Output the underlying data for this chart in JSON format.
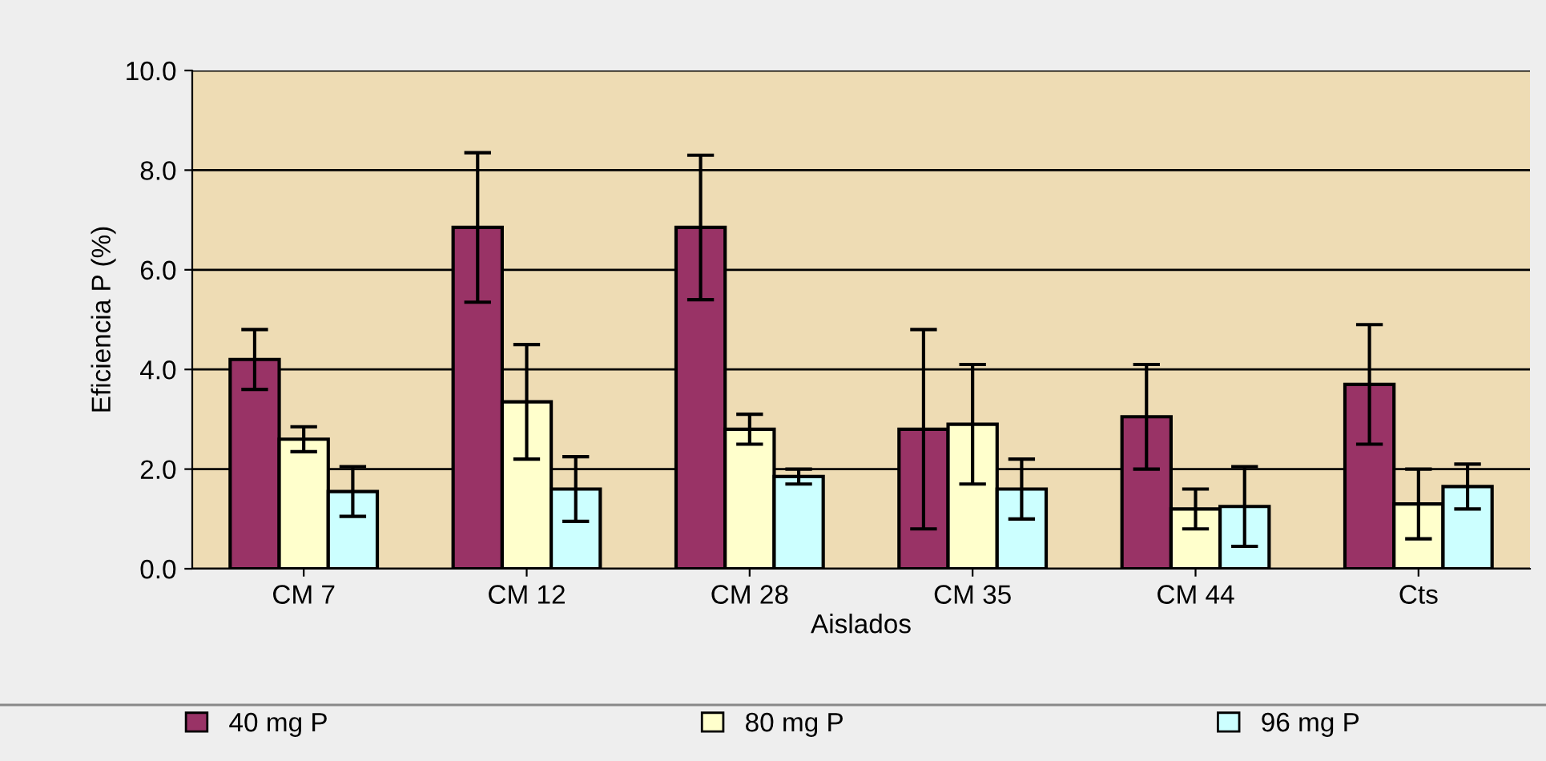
{
  "chart_data": {
    "type": "bar",
    "xlabel": "Aislados",
    "ylabel": "Eficiencia P (%)",
    "categories": [
      "CM 7",
      "CM 12",
      "CM 28",
      "CM 35",
      "CM 44",
      "Cts"
    ],
    "series": [
      {
        "name": "40 mg P",
        "color": "#993366",
        "values": [
          4.2,
          6.85,
          6.85,
          2.8,
          3.05,
          3.7
        ],
        "errors": [
          0.6,
          1.5,
          1.45,
          2.0,
          1.05,
          1.2
        ]
      },
      {
        "name": "80 mg P",
        "color": "#ffffcc",
        "values": [
          2.6,
          3.35,
          2.8,
          2.9,
          1.2,
          1.3
        ],
        "errors": [
          0.25,
          1.15,
          0.3,
          1.2,
          0.4,
          0.7
        ]
      },
      {
        "name": "96 mg P",
        "color": "#ccffff",
        "values": [
          1.55,
          1.6,
          1.85,
          1.6,
          1.25,
          1.65
        ],
        "errors": [
          0.5,
          0.65,
          0.15,
          0.6,
          0.8,
          0.45
        ]
      }
    ],
    "ylim": [
      0,
      10
    ],
    "yticks": [
      {
        "value": 0,
        "label": "0.0"
      },
      {
        "value": 2,
        "label": "2.0"
      },
      {
        "value": 4,
        "label": "4.0"
      },
      {
        "value": 6,
        "label": "6.0"
      },
      {
        "value": 8,
        "label": "8.0"
      },
      {
        "value": 10,
        "label": "10.0"
      }
    ],
    "grid": "y",
    "legend": "bottom"
  }
}
